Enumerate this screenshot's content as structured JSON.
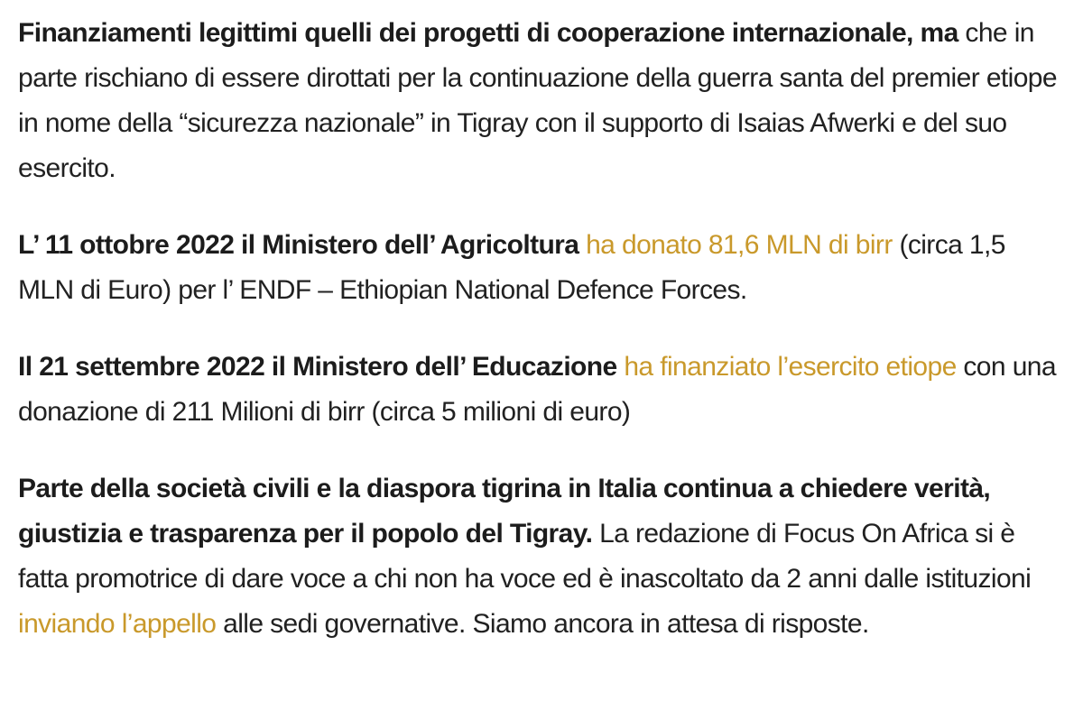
{
  "colors": {
    "background": "#FFFFFF",
    "text": "#212121",
    "bold_text": "#1C1C1C",
    "link": "#C9992B"
  },
  "article": {
    "paragraphs": [
      {
        "name": "intro",
        "runs": [
          {
            "style": "bold",
            "text": "Finanziamenti legittimi quelli dei progetti di cooperazione internazionale, ma"
          },
          {
            "style": "normal",
            "text": " che in parte rischiano di essere dirottati per la continuazione della guerra santa del premier etiope in nome della “sicurezza nazionale” in Tigray con il supporto di Isaias Afwerki e del suo esercito."
          }
        ]
      },
      {
        "name": "agricoltura-donation",
        "runs": [
          {
            "style": "bold",
            "text": "L’ 11 ottobre 2022 il Ministero dell’ Agricoltura"
          },
          {
            "style": "link",
            "text": "ha donato 81,6 MLN di birr"
          },
          {
            "style": "normal",
            "text": " (circa 1,5 MLN di Euro) per l’ ENDF – Ethiopian National Defence Forces."
          }
        ]
      },
      {
        "name": "educazione-donation",
        "runs": [
          {
            "style": "bold",
            "text": "Il 21 settembre 2022 il Ministero dell’ Educazione"
          },
          {
            "style": "link",
            "text": "ha finanziato l’esercito etiope"
          },
          {
            "style": "normal",
            "text": " con una donazione di 211 Milioni di birr (circa 5 milioni di euro)"
          }
        ]
      },
      {
        "name": "diaspora-appeal",
        "runs": [
          {
            "style": "bold",
            "text": "Parte della società civili e la diaspora tigrina in Italia continua a chiedere verità, giustizia e trasparenza per il popolo del Tigray."
          },
          {
            "style": "normal",
            "text": " La redazione di Focus On Africa si è fatta promotrice di dare voce a chi non ha voce ed è inascoltato da 2 anni dalle istituzioni "
          },
          {
            "style": "link",
            "text": "inviando l’appello"
          },
          {
            "style": "normal",
            "text": " alle sedi governative. Siamo ancora in attesa di risposte."
          }
        ]
      }
    ]
  }
}
